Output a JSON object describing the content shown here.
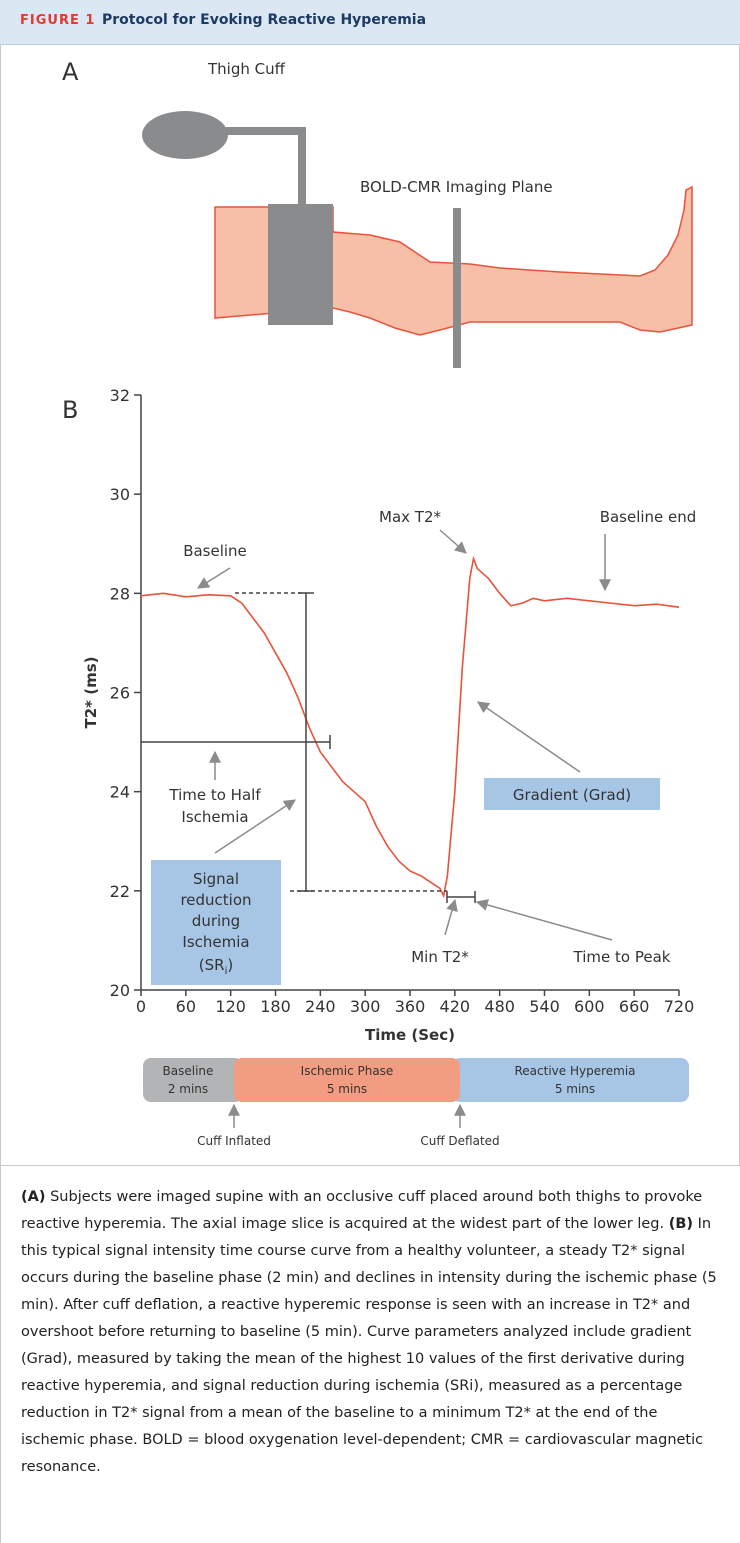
{
  "header": {
    "label": "FIGURE 1",
    "title": "Protocol for Evoking Reactive Hyperemia"
  },
  "panel_a": {
    "label": "A",
    "cuff": "Thigh Cuff",
    "plane": "BOLD-CMR Imaging Plane"
  },
  "panel_b": {
    "label": "B"
  },
  "chart_data": {
    "type": "line",
    "xlabel": "Time (Sec)",
    "ylabel": "T2* (ms)",
    "color": "#e8533a",
    "x": [
      0,
      30,
      60,
      90,
      120,
      135,
      150,
      165,
      180,
      195,
      210,
      225,
      240,
      255,
      270,
      285,
      300,
      315,
      330,
      345,
      360,
      375,
      390,
      400,
      405,
      410,
      420,
      430,
      440,
      445,
      450,
      465,
      480,
      495,
      510,
      525,
      540,
      570,
      600,
      630,
      660,
      690,
      720
    ],
    "values": [
      27.95,
      28.0,
      27.93,
      27.97,
      27.95,
      27.8,
      27.5,
      27.2,
      26.8,
      26.4,
      25.9,
      25.3,
      24.8,
      24.5,
      24.2,
      24.0,
      23.8,
      23.3,
      22.9,
      22.6,
      22.4,
      22.3,
      22.15,
      22.05,
      21.9,
      22.3,
      24.0,
      26.5,
      28.3,
      28.7,
      28.5,
      28.3,
      28.0,
      27.75,
      27.8,
      27.9,
      27.85,
      27.9,
      27.85,
      27.8,
      27.75,
      27.78,
      27.72
    ],
    "xlim": [
      0,
      720
    ],
    "xticks": [
      0,
      60,
      120,
      180,
      240,
      300,
      360,
      420,
      480,
      540,
      600,
      660,
      720
    ],
    "ylim": [
      20,
      32
    ],
    "yticks": [
      20,
      22,
      24,
      26,
      28,
      30,
      32
    ],
    "annotations": {
      "baseline": "Baseline",
      "max": "Max T2*",
      "baseline_end": "Baseline end",
      "half_1": "Time to Half",
      "half_2": "Ischemia",
      "gradient": "Gradient (Grad)",
      "sr": [
        "Signal",
        "reduction",
        "during",
        "Ischemia",
        "(SR",
        "i",
        ")"
      ],
      "min": "Min T2*",
      "peak": "Time to Peak"
    }
  },
  "phases": [
    {
      "name": "Baseline",
      "duration": "2 mins"
    },
    {
      "name": "Ischemic Phase",
      "duration": "5 mins"
    },
    {
      "name": "Reactive Hyperemia",
      "duration": "5 mins"
    }
  ],
  "events": [
    "Cuff Inflated",
    "Cuff Deflated"
  ],
  "caption": {
    "a_label": "(A)",
    "a_text": " Subjects were imaged supine with an occlusive cuff placed around both thighs to provoke reactive hyperemia. The axial image slice is acquired at the widest part of the lower leg. ",
    "b_label": "(B)",
    "b_text": " In this typical signal intensity time course curve from a healthy volunteer, a steady T2* signal occurs during the baseline phase (2 min) and declines in intensity during the ischemic phase (5 min). After cuff deflation, a reactive hyperemic response is seen with an increase in T2* and overshoot before returning to baseline (5 min). Curve parameters analyzed include gradient (Grad), measured by taking the mean of the highest 10 values of the first derivative during reactive hyperemia, and signal reduction during ischemia (SRi), measured as a percentage reduction in T2* signal from a mean of the baseline to a minimum T2* at the end of the ischemic phase. BOLD = blood oxygenation level-dependent; CMR = cardiovascular magnetic resonance."
  }
}
